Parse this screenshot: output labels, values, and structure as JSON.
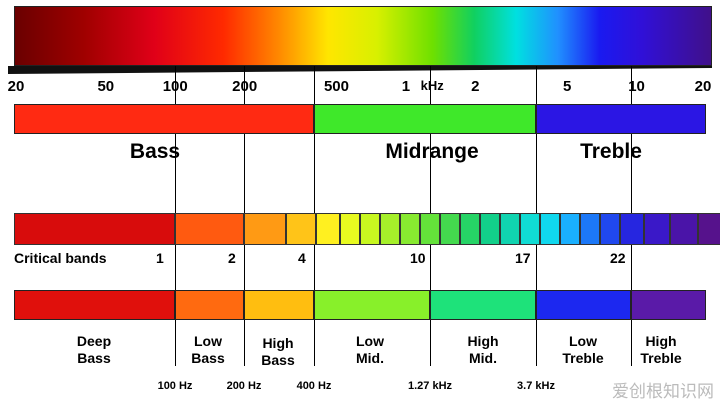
{
  "scale": {
    "ticks": [
      {
        "label": "20",
        "freq_hz": 20
      },
      {
        "label": "50",
        "freq_hz": 50
      },
      {
        "label": "100",
        "freq_hz": 100
      },
      {
        "label": "200",
        "freq_hz": 200
      },
      {
        "label": "500",
        "freq_hz": 500
      },
      {
        "label": "1",
        "freq_hz": 1000
      },
      {
        "label": "kHz",
        "freq_hz": 1300
      },
      {
        "label": "2",
        "freq_hz": 2000
      },
      {
        "label": "5",
        "freq_hz": 5000
      },
      {
        "label": "10",
        "freq_hz": 10000
      },
      {
        "label": "20",
        "freq_hz": 20000
      }
    ]
  },
  "regions": [
    {
      "label": "Bass",
      "color": "#ff2a12"
    },
    {
      "label": "Midrange",
      "color": "#3fe82a"
    },
    {
      "label": "Treble",
      "color": "#2b16e4"
    }
  ],
  "critical_bands": {
    "title": "Critical bands",
    "numbers": [
      "1",
      "2",
      "4",
      "10",
      "17",
      "22"
    ]
  },
  "sub_bands": [
    {
      "label": "Deep\nBass",
      "color": "#e0100c"
    },
    {
      "label": "Low\nBass",
      "color": "#ff6a10"
    },
    {
      "label": "High\nBass",
      "color": "#ffbe10"
    },
    {
      "label": "Low\nMid.",
      "color": "#88f02a"
    },
    {
      "label": "High\nMid.",
      "color": "#1ee27a"
    },
    {
      "label": "Low\nTreble",
      "color": "#1c28f0"
    },
    {
      "label": "High\nTreble",
      "color": "#5a1aa8"
    }
  ],
  "boundaries": [
    "100 Hz",
    "200 Hz",
    "400 Hz",
    "1.27 kHz",
    "3.7 kHz"
  ],
  "watermark": "爱创根知识网"
}
